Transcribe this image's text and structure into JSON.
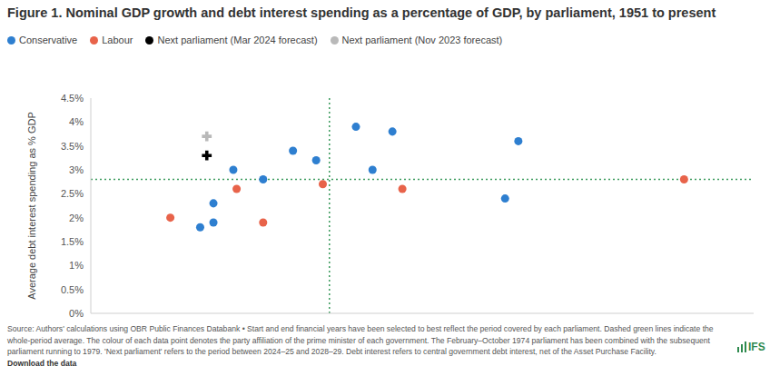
{
  "chart_data": {
    "type": "scatter",
    "title": "Figure 1. Nominal GDP growth and debt interest spending as a percentage of GDP, by parliament, 1951 to present",
    "y_label": "Average debt interest spending as % GDP",
    "xlim": [
      0,
      20
    ],
    "ylim": [
      0,
      4.5
    ],
    "yticks": [
      {
        "value": 0,
        "label": "0%"
      },
      {
        "value": 0.5,
        "label": "0.5%"
      },
      {
        "value": 1,
        "label": "1%"
      },
      {
        "value": 1.5,
        "label": "1.5%"
      },
      {
        "value": 2,
        "label": "2%"
      },
      {
        "value": 2.5,
        "label": "2.5%"
      },
      {
        "value": 3,
        "label": "3%"
      },
      {
        "value": 3.5,
        "label": "3.5%"
      },
      {
        "value": 4,
        "label": "4%"
      },
      {
        "value": 4.5,
        "label": "4.5%"
      }
    ],
    "tick_labels": "y",
    "grid": false,
    "legend": "top-left",
    "series": [
      {
        "name": "Conservative",
        "color": "#2e7fd0",
        "marker": "circle",
        "x": [
          3.3,
          3.7,
          3.7,
          4.3,
          5.2,
          6.1,
          6.8,
          8.0,
          8.5,
          9.1,
          12.5,
          12.9
        ],
        "values": [
          1.8,
          1.9,
          2.3,
          3.0,
          2.8,
          3.4,
          3.2,
          3.9,
          3.0,
          3.8,
          2.4,
          3.6
        ]
      },
      {
        "name": "Labour",
        "color": "#e8634a",
        "marker": "circle",
        "x": [
          2.4,
          4.4,
          5.2,
          7.0,
          9.4,
          17.9
        ],
        "values": [
          2.0,
          2.6,
          1.9,
          2.7,
          2.6,
          2.8
        ]
      },
      {
        "name": "Next parliament (Mar 2024 forecast)",
        "color": "#000000",
        "marker": "plus",
        "x": [
          3.5
        ],
        "values": [
          3.3
        ]
      },
      {
        "name": "Next parliament (Nov 2023 forecast)",
        "color": "#b9b9b9",
        "marker": "plus",
        "x": [
          3.5
        ],
        "values": [
          3.7
        ]
      }
    ],
    "averages": {
      "x": 7.2,
      "y": 2.8
    },
    "note": "Source: Authors' calculations using OBR Public Finances Databank • Start and end financial years have been selected to best reflect the period covered by each parliament. Dashed green lines indicate the whole-period average. The colour of each data point denotes the party affiliation of the prime minister of each government. The February–October 1974 parliament has been combined with the subsequent parliament running to 1979. 'Next parliament' refers to the period between 2024–25 and 2028–29. Debt interest refers to central government debt interest, net of the Asset Purchase Facility.",
    "link": "Download the data",
    "logo": "IFS"
  }
}
